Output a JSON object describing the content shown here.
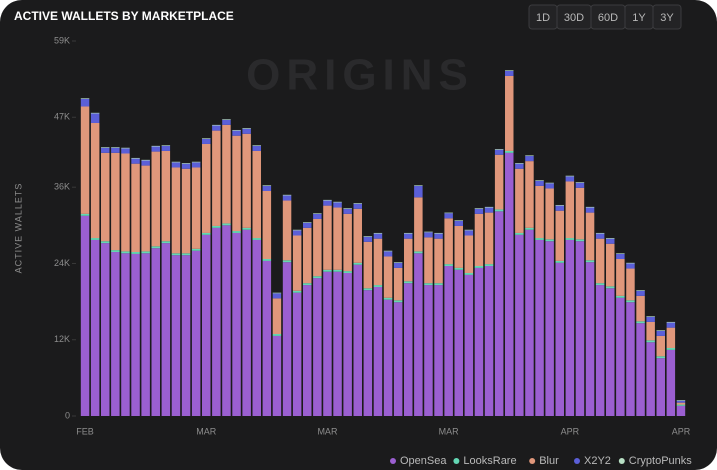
{
  "chart_data": {
    "type": "stacked_bar",
    "title": "ACTIVE WALLETS BY MARKETPLACE",
    "watermark": "ORIGINS",
    "y_label": "ACTIVE WALLETS",
    "range_buttons": [
      "1D",
      "30D",
      "60D",
      "1Y",
      "3Y"
    ],
    "active_range": "60D",
    "categories": [
      "FEB",
      null,
      null,
      null,
      null,
      null,
      null,
      null,
      null,
      null,
      null,
      null,
      "MAR",
      null,
      null,
      null,
      null,
      null,
      null,
      null,
      null,
      null,
      null,
      null,
      "MAR",
      null,
      null,
      null,
      null,
      null,
      null,
      null,
      null,
      null,
      null,
      null,
      "MAR",
      null,
      null,
      null,
      null,
      null,
      null,
      null,
      null,
      null,
      null,
      null,
      "APR",
      null,
      null,
      null,
      null,
      null,
      null,
      null,
      null,
      null,
      null,
      "APR"
    ],
    "ylim": [
      0,
      59000
    ],
    "yticks": [
      0,
      {
        "value": 12000,
        "label": "12K"
      },
      {
        "value": 24000,
        "label": "24K"
      },
      {
        "value": 36000,
        "label": "36K"
      },
      {
        "value": 47000,
        "label": "47K"
      },
      {
        "value": 59000,
        "label": "59K"
      }
    ],
    "legend": "bottom-right",
    "series": [
      {
        "name": "OpenSea",
        "color": "#9b5fd1",
        "values": [
          31500,
          27700,
          27200,
          25800,
          25600,
          25500,
          25600,
          26400,
          27200,
          25300,
          25300,
          26000,
          28500,
          29600,
          30000,
          28800,
          29300,
          27700,
          24400,
          12600,
          24200,
          19400,
          20600,
          21700,
          22700,
          22700,
          22500,
          23800,
          19800,
          20300,
          18300,
          17900,
          20900,
          25600,
          20600,
          20600,
          23600,
          23000,
          22200,
          23300,
          23600,
          32200,
          41400,
          28500,
          29300,
          27700,
          27500,
          24100,
          27700,
          27500,
          24200,
          20600,
          20100,
          18600,
          17900,
          14600,
          11600,
          9100,
          10400,
          1600
        ]
      },
      {
        "name": "LooksRare",
        "color": "#63d7b4",
        "values": [
          300,
          300,
          300,
          300,
          300,
          300,
          300,
          300,
          300,
          300,
          300,
          300,
          300,
          300,
          300,
          300,
          300,
          300,
          300,
          300,
          300,
          300,
          300,
          300,
          300,
          300,
          300,
          300,
          300,
          300,
          300,
          300,
          300,
          300,
          300,
          300,
          300,
          300,
          300,
          300,
          300,
          300,
          300,
          300,
          300,
          300,
          300,
          300,
          300,
          300,
          300,
          300,
          300,
          300,
          300,
          300,
          300,
          300,
          300,
          200
        ]
      },
      {
        "name": "Blur",
        "color": "#e0977b",
        "values": [
          16900,
          18100,
          13900,
          15300,
          15400,
          13900,
          13500,
          14900,
          14200,
          13500,
          13300,
          12800,
          14000,
          15000,
          15500,
          15000,
          14800,
          13700,
          10700,
          5600,
          9400,
          8700,
          8700,
          9000,
          10100,
          9800,
          9000,
          8500,
          7300,
          7300,
          6500,
          5100,
          6700,
          8500,
          7200,
          7000,
          7200,
          6600,
          5900,
          8200,
          8100,
          8600,
          11800,
          10100,
          10500,
          8200,
          8000,
          7900,
          8900,
          8100,
          7500,
          7000,
          6700,
          5800,
          5000,
          4000,
          2900,
          3200,
          3200,
          300
        ]
      },
      {
        "name": "X2Y2",
        "color": "#5b5fd8",
        "values": [
          1200,
          1500,
          800,
          800,
          800,
          800,
          800,
          800,
          800,
          800,
          800,
          800,
          800,
          800,
          800,
          800,
          800,
          800,
          800,
          800,
          800,
          800,
          800,
          800,
          800,
          800,
          800,
          800,
          800,
          800,
          800,
          800,
          800,
          1800,
          800,
          800,
          800,
          800,
          800,
          800,
          800,
          800,
          800,
          800,
          800,
          800,
          800,
          800,
          800,
          800,
          800,
          800,
          800,
          800,
          800,
          800,
          800,
          800,
          800,
          300
        ]
      },
      {
        "name": "CryptoPunks",
        "color": "#b8e0c4",
        "values": [
          100,
          100,
          100,
          100,
          100,
          100,
          100,
          100,
          100,
          100,
          100,
          100,
          100,
          100,
          100,
          100,
          100,
          100,
          100,
          100,
          100,
          100,
          100,
          100,
          100,
          100,
          100,
          100,
          100,
          100,
          100,
          100,
          100,
          100,
          100,
          100,
          100,
          100,
          100,
          100,
          100,
          100,
          100,
          100,
          100,
          100,
          100,
          100,
          100,
          100,
          100,
          100,
          100,
          100,
          100,
          100,
          100,
          100,
          100,
          100
        ]
      }
    ]
  }
}
